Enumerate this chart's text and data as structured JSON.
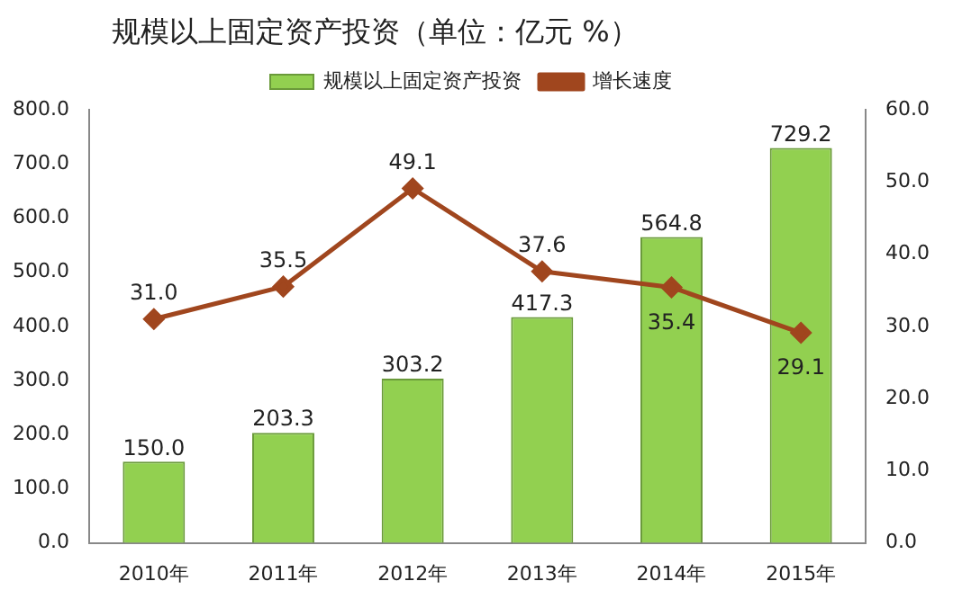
{
  "chart_data": {
    "type": "bar",
    "title": "规模以上固定资产投资（单位：亿元 %）",
    "categories": [
      "2010年",
      "2011年",
      "2012年",
      "2013年",
      "2014年",
      "2015年"
    ],
    "series": [
      {
        "name": "规模以上固定资产投资",
        "color": "#92d050",
        "values": [
          150.0,
          203.3,
          303.2,
          417.3,
          564.8,
          729.2
        ],
        "value_labels": [
          "150.0",
          "203.3",
          "303.2",
          "417.3",
          "564.8",
          "729.2"
        ]
      },
      {
        "name": "增长速度",
        "type": "line",
        "axis": "y2",
        "color": "#a0461e",
        "marker": "diamond",
        "values": [
          31.0,
          35.5,
          49.1,
          37.6,
          35.4,
          29.1
        ],
        "value_labels": [
          "31.0",
          "35.5",
          "49.1",
          "37.6",
          "35.4",
          "29.1"
        ]
      }
    ],
    "ylim": [
      0,
      800
    ],
    "yticks": [
      {
        "value": 0,
        "label": "0.0"
      },
      {
        "value": 100,
        "label": "100.0"
      },
      {
        "value": 200,
        "label": "200.0"
      },
      {
        "value": 300,
        "label": "300.0"
      },
      {
        "value": 400,
        "label": "400.0"
      },
      {
        "value": 500,
        "label": "500.0"
      },
      {
        "value": 600,
        "label": "600.0"
      },
      {
        "value": 700,
        "label": "700.0"
      },
      {
        "value": 800,
        "label": "800.0"
      }
    ],
    "y2lim": [
      0,
      60
    ],
    "y2ticks": [
      {
        "value": 0,
        "label": "0.0"
      },
      {
        "value": 10,
        "label": "10.0"
      },
      {
        "value": 20,
        "label": "20.0"
      },
      {
        "value": 30,
        "label": "30.0"
      },
      {
        "value": 40,
        "label": "40.0"
      },
      {
        "value": 50,
        "label": "50.0"
      },
      {
        "value": 60,
        "label": "60.0"
      }
    ],
    "legend": "top",
    "grid": false
  }
}
